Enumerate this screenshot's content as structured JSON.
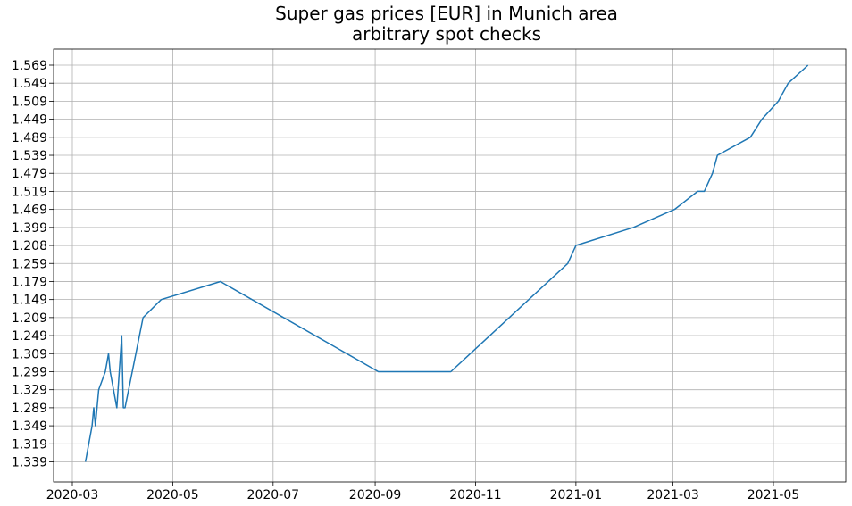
{
  "chart_data": {
    "type": "line",
    "title": "Super gas prices [EUR] in Munich area",
    "subtitle": "arbitrary spot checks",
    "xlabel": "",
    "ylabel": "",
    "grid": true,
    "line_color": "#1f77b4",
    "x_ticks": [
      "2020-03",
      "2020-05",
      "2020-07",
      "2020-09",
      "2020-11",
      "2021-01",
      "2021-03",
      "2021-05"
    ],
    "y_categories": [
      "1.339",
      "1.319",
      "1.349",
      "1.289",
      "1.329",
      "1.299",
      "1.309",
      "1.249",
      "1.209",
      "1.149",
      "1.179",
      "1.259",
      "1.208",
      "1.399",
      "1.469",
      "1.519",
      "1.479",
      "1.539",
      "1.489",
      "1.449",
      "1.509",
      "1.549",
      "1.569"
    ],
    "series": [
      {
        "x": [
          "2020-03-09",
          "2020-03-11",
          "2020-03-13",
          "2020-03-14",
          "2020-03-15",
          "2020-03-17",
          "2020-03-21",
          "2020-03-23",
          "2020-03-24",
          "2020-03-28",
          "2020-03-31",
          "2020-04-01",
          "2020-04-02",
          "2020-04-13",
          "2020-04-24",
          "2020-05-30",
          "2020-09-03",
          "2020-10-17",
          "2020-12-27",
          "2021-01-01",
          "2021-02-05",
          "2021-03-02",
          "2021-03-16",
          "2021-03-20",
          "2021-03-25",
          "2021-03-28",
          "2021-04-17",
          "2021-04-24",
          "2021-05-04",
          "2021-05-10",
          "2021-05-22"
        ],
        "y": [
          "1.339",
          "1.319",
          "1.349",
          "1.289",
          "1.349",
          "1.329",
          "1.299",
          "1.309",
          "1.299",
          "1.289",
          "1.249",
          "1.289",
          "1.289",
          "1.209",
          "1.149",
          "1.179",
          "1.299",
          "1.299",
          "1.259",
          "1.208",
          "1.399",
          "1.469",
          "1.519",
          "1.519",
          "1.479",
          "1.539",
          "1.489",
          "1.449",
          "1.509",
          "1.549",
          "1.569"
        ]
      }
    ]
  }
}
